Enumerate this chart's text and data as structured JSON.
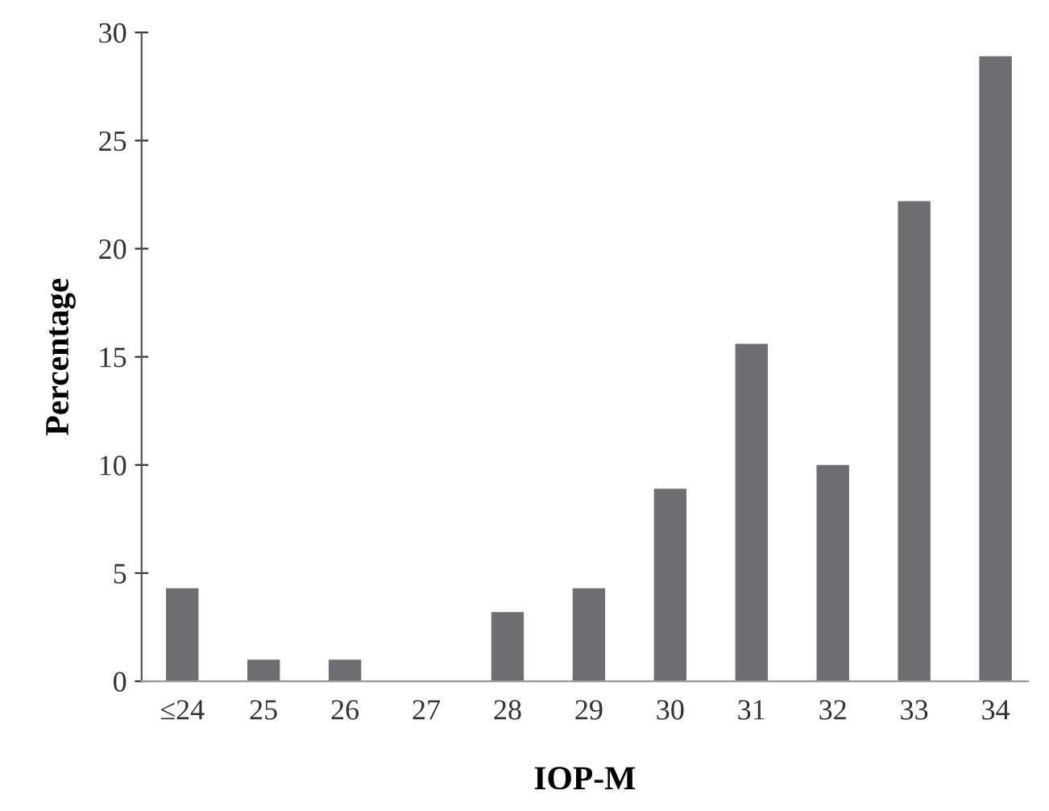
{
  "chart_data": {
    "type": "bar",
    "xlabel": "IOP-M",
    "ylabel": "Percentage",
    "categories": [
      "≤24",
      "25",
      "26",
      "27",
      "28",
      "29",
      "30",
      "31",
      "32",
      "33",
      "34"
    ],
    "values": [
      4.3,
      1.0,
      1.0,
      0,
      3.2,
      4.3,
      8.9,
      15.6,
      10.0,
      22.2,
      28.9
    ],
    "color": "#6e6e72",
    "ylim": [
      0,
      30
    ],
    "yticks": [
      0,
      5,
      10,
      15,
      20,
      25,
      30
    ],
    "grid": false,
    "legend": false
  }
}
